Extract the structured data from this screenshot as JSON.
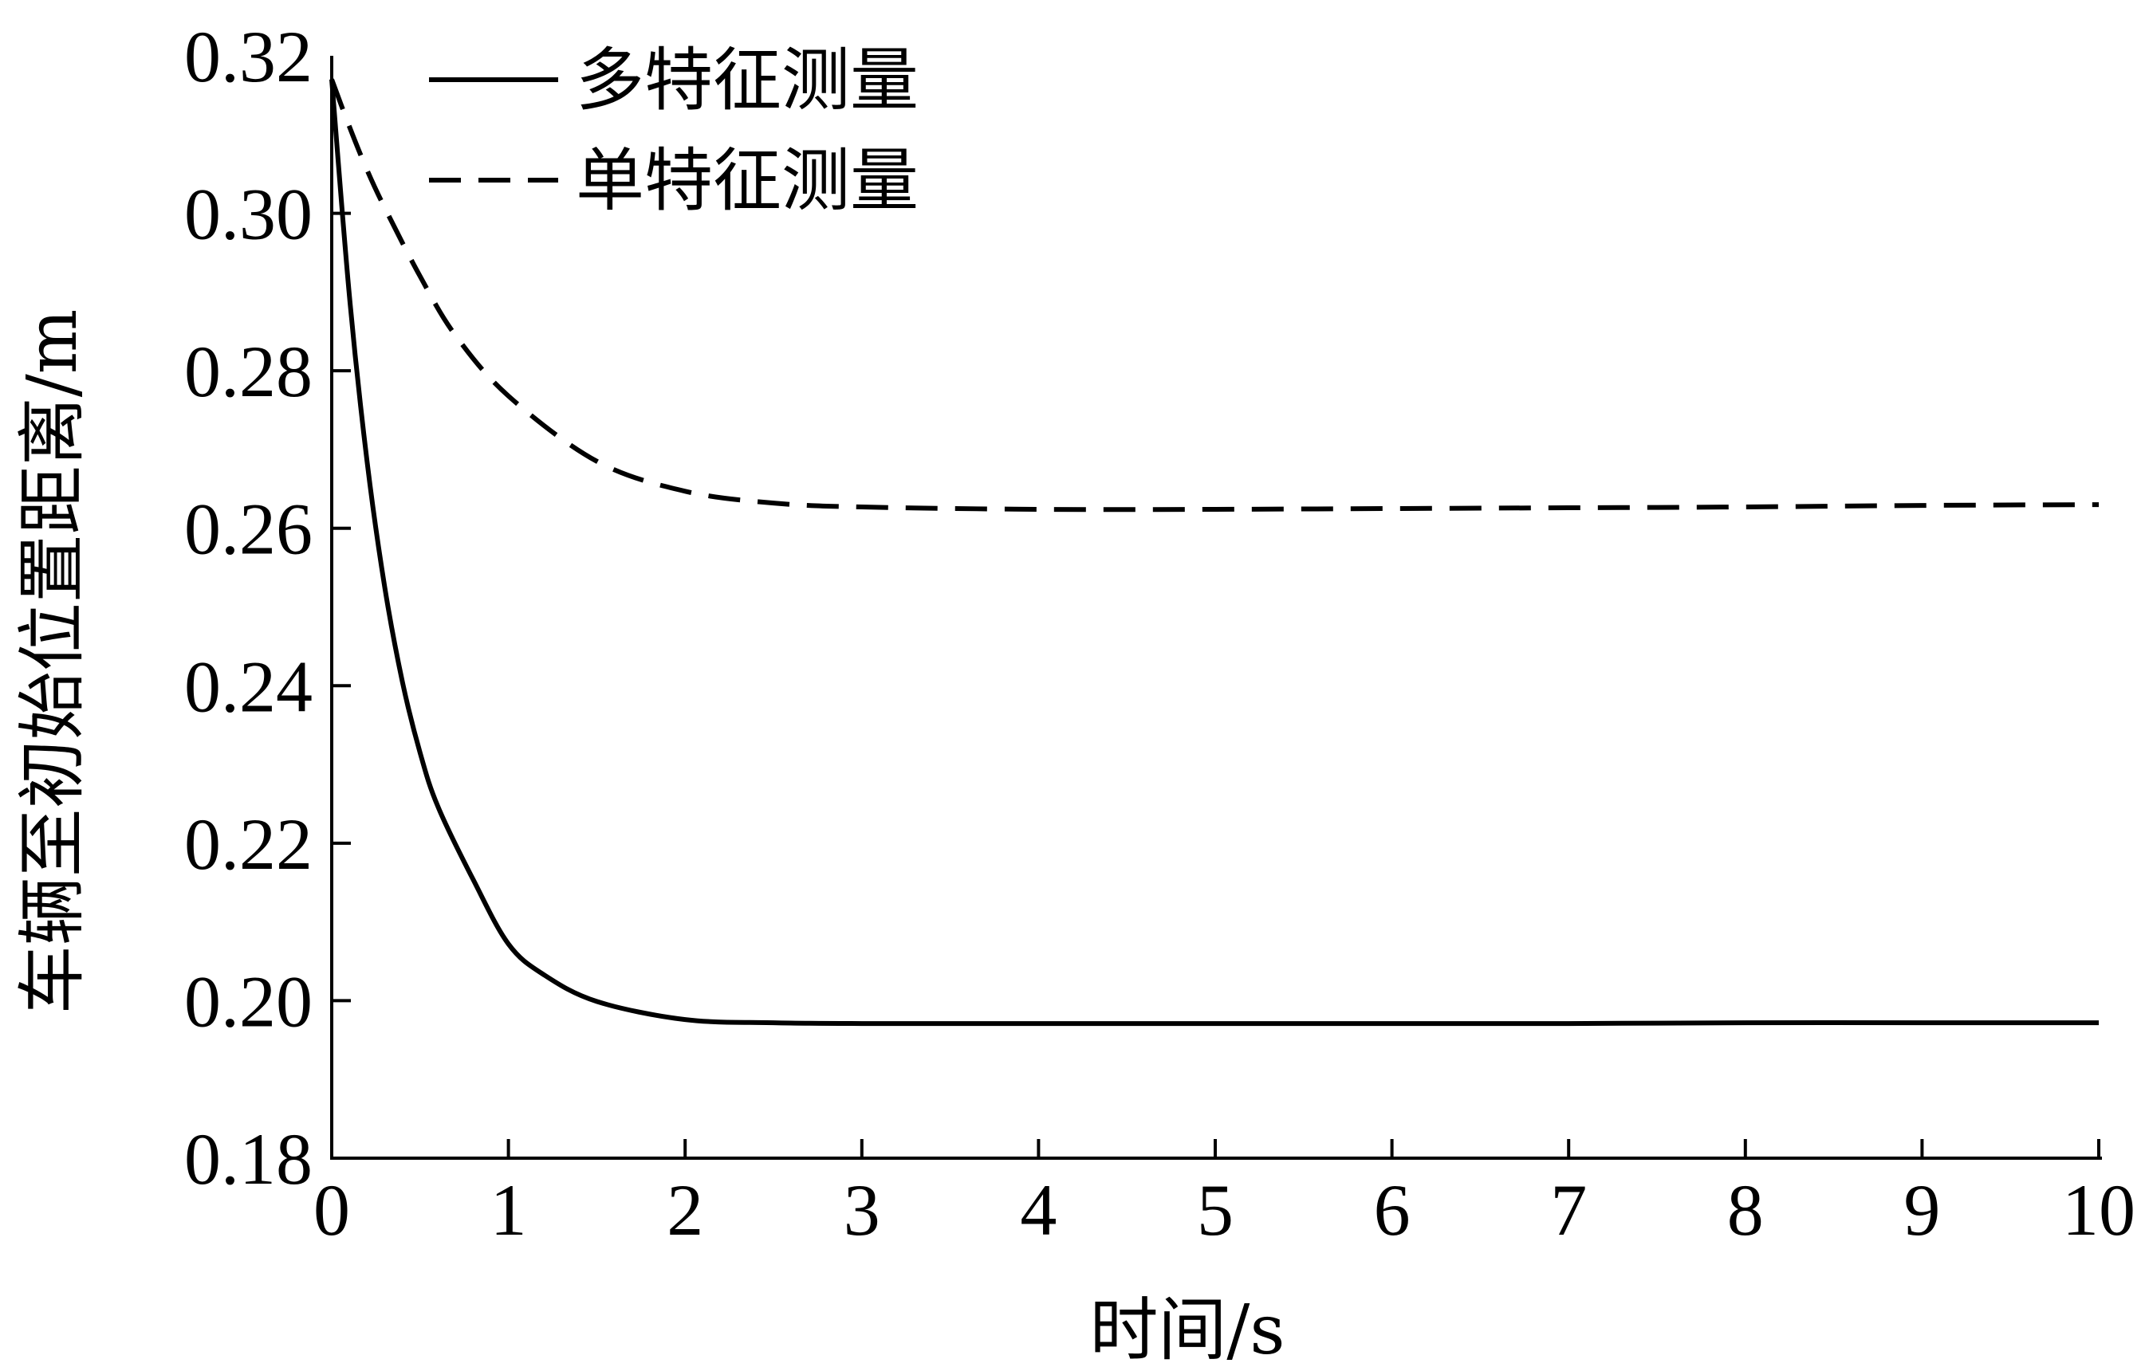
{
  "chart_data": {
    "type": "line",
    "title": "",
    "xlabel": "时间/s",
    "ylabel": "车辆至初始位置距离/m",
    "xlim": [
      0,
      10
    ],
    "ylim": [
      0.18,
      0.32
    ],
    "xticks": [
      0,
      1,
      2,
      3,
      4,
      5,
      6,
      7,
      8,
      9,
      10
    ],
    "yticks": [
      "0.18",
      "0.20",
      "0.22",
      "0.24",
      "0.26",
      "0.28",
      "0.30",
      "0.32"
    ],
    "grid": false,
    "legend_position": "top-left",
    "series": [
      {
        "name": "多特征测量",
        "line_style": "solid",
        "color": "#000000",
        "x": [
          0,
          0.1,
          0.2,
          0.3,
          0.4,
          0.5,
          0.6,
          0.8,
          1.0,
          1.2,
          1.5,
          2.0,
          2.5,
          3,
          4,
          5,
          6,
          7,
          8,
          9,
          10
        ],
        "y": [
          0.317,
          0.2895,
          0.2685,
          0.2525,
          0.2405,
          0.2315,
          0.2247,
          0.2154,
          0.2072,
          0.2033,
          0.1999,
          0.1976,
          0.1972,
          0.1971,
          0.1971,
          0.1971,
          0.1971,
          0.1971,
          0.1972,
          0.1972,
          0.1972
        ]
      },
      {
        "name": "单特征测量",
        "line_style": "dashed",
        "color": "#000000",
        "x": [
          0,
          0.1,
          0.2,
          0.3,
          0.5,
          0.7,
          1.0,
          1.5,
          2.0,
          2.5,
          3,
          4,
          5,
          6,
          7,
          8,
          9,
          10
        ],
        "y": [
          0.317,
          0.311,
          0.3055,
          0.3007,
          0.292,
          0.2845,
          0.2768,
          0.2685,
          0.2647,
          0.2632,
          0.2627,
          0.2624,
          0.2624,
          0.2625,
          0.2626,
          0.2627,
          0.2629,
          0.263
        ]
      }
    ]
  }
}
